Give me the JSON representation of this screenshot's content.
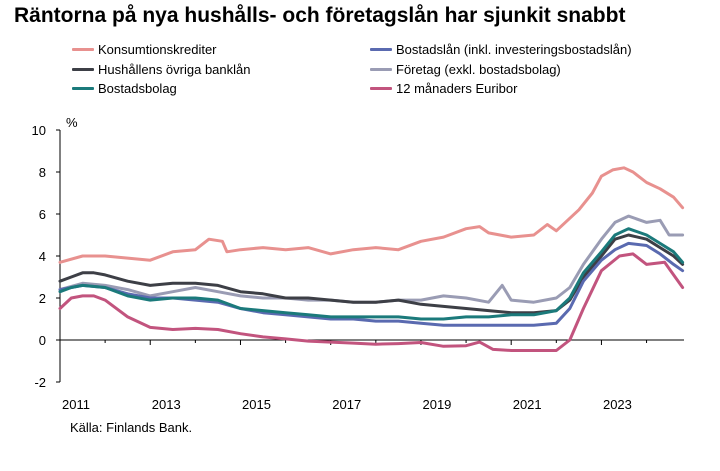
{
  "title": "Räntorna på nya hushålls- och företagslån har sjunkit snabbt",
  "source": "Källa: Finlands Bank.",
  "chart_data": {
    "type": "line",
    "ylabel": "%",
    "ylim": [
      -2,
      10
    ],
    "yticks": [
      -2,
      0,
      2,
      4,
      6,
      8,
      10
    ],
    "xlim": [
      2011.0,
      2024.83
    ],
    "xticks": [
      2011,
      2013,
      2015,
      2017,
      2019,
      2021,
      2023
    ],
    "xticklabels": [
      "2011",
      "2013",
      "2015",
      "2017",
      "2019",
      "2021",
      "2023"
    ],
    "grid": false,
    "legend_position": "top",
    "series": [
      {
        "name": "Konsumtionskrediter",
        "color": "#e8918f",
        "points": [
          [
            2011.0,
            3.7
          ],
          [
            2011.5,
            4.0
          ],
          [
            2012.0,
            4.0
          ],
          [
            2012.5,
            3.9
          ],
          [
            2013.0,
            3.8
          ],
          [
            2013.5,
            4.2
          ],
          [
            2014.0,
            4.3
          ],
          [
            2014.3,
            4.8
          ],
          [
            2014.6,
            4.7
          ],
          [
            2014.7,
            4.2
          ],
          [
            2015.0,
            4.3
          ],
          [
            2015.5,
            4.4
          ],
          [
            2016.0,
            4.3
          ],
          [
            2016.5,
            4.4
          ],
          [
            2017.0,
            4.1
          ],
          [
            2017.5,
            4.3
          ],
          [
            2018.0,
            4.4
          ],
          [
            2018.5,
            4.3
          ],
          [
            2019.0,
            4.7
          ],
          [
            2019.5,
            4.9
          ],
          [
            2020.0,
            5.3
          ],
          [
            2020.3,
            5.4
          ],
          [
            2020.5,
            5.1
          ],
          [
            2021.0,
            4.9
          ],
          [
            2021.5,
            5.0
          ],
          [
            2021.8,
            5.5
          ],
          [
            2022.0,
            5.2
          ],
          [
            2022.5,
            6.2
          ],
          [
            2022.8,
            7.0
          ],
          [
            2023.0,
            7.8
          ],
          [
            2023.25,
            8.1
          ],
          [
            2023.5,
            8.2
          ],
          [
            2023.7,
            8.0
          ],
          [
            2024.0,
            7.5
          ],
          [
            2024.3,
            7.2
          ],
          [
            2024.6,
            6.8
          ],
          [
            2024.8,
            6.3
          ]
        ]
      },
      {
        "name": "Hushållens övriga banklån",
        "color": "#3d3f46",
        "points": [
          [
            2011.0,
            2.8
          ],
          [
            2011.25,
            3.0
          ],
          [
            2011.5,
            3.2
          ],
          [
            2011.75,
            3.2
          ],
          [
            2012.0,
            3.1
          ],
          [
            2012.5,
            2.8
          ],
          [
            2013.0,
            2.6
          ],
          [
            2013.5,
            2.7
          ],
          [
            2014.0,
            2.7
          ],
          [
            2014.5,
            2.6
          ],
          [
            2015.0,
            2.3
          ],
          [
            2015.5,
            2.2
          ],
          [
            2016.0,
            2.0
          ],
          [
            2016.5,
            2.0
          ],
          [
            2017.0,
            1.9
          ],
          [
            2017.5,
            1.8
          ],
          [
            2018.0,
            1.8
          ],
          [
            2018.5,
            1.9
          ],
          [
            2019.0,
            1.7
          ],
          [
            2019.5,
            1.6
          ],
          [
            2020.0,
            1.5
          ],
          [
            2020.5,
            1.4
          ],
          [
            2021.0,
            1.3
          ],
          [
            2021.5,
            1.3
          ],
          [
            2022.0,
            1.4
          ],
          [
            2022.3,
            1.9
          ],
          [
            2022.6,
            3.0
          ],
          [
            2023.0,
            4.0
          ],
          [
            2023.3,
            4.8
          ],
          [
            2023.6,
            5.0
          ],
          [
            2024.0,
            4.8
          ],
          [
            2024.3,
            4.4
          ],
          [
            2024.6,
            4.0
          ],
          [
            2024.8,
            3.6
          ]
        ]
      },
      {
        "name": "Bostadsbolag",
        "color": "#1b7a7b",
        "points": [
          [
            2011.0,
            2.3
          ],
          [
            2011.25,
            2.5
          ],
          [
            2011.5,
            2.6
          ],
          [
            2012.0,
            2.5
          ],
          [
            2012.5,
            2.1
          ],
          [
            2013.0,
            1.9
          ],
          [
            2013.5,
            2.0
          ],
          [
            2014.0,
            2.0
          ],
          [
            2014.5,
            1.9
          ],
          [
            2015.0,
            1.5
          ],
          [
            2015.5,
            1.4
          ],
          [
            2016.0,
            1.3
          ],
          [
            2016.5,
            1.2
          ],
          [
            2017.0,
            1.1
          ],
          [
            2017.5,
            1.1
          ],
          [
            2018.0,
            1.1
          ],
          [
            2018.5,
            1.1
          ],
          [
            2019.0,
            1.0
          ],
          [
            2019.5,
            1.0
          ],
          [
            2020.0,
            1.1
          ],
          [
            2020.5,
            1.1
          ],
          [
            2021.0,
            1.2
          ],
          [
            2021.5,
            1.2
          ],
          [
            2022.0,
            1.4
          ],
          [
            2022.3,
            2.0
          ],
          [
            2022.6,
            3.2
          ],
          [
            2023.0,
            4.2
          ],
          [
            2023.3,
            5.0
          ],
          [
            2023.6,
            5.3
          ],
          [
            2024.0,
            5.0
          ],
          [
            2024.3,
            4.6
          ],
          [
            2024.6,
            4.2
          ],
          [
            2024.8,
            3.7
          ]
        ]
      },
      {
        "name": "Bostadslån (inkl. investeringsbostadslån)",
        "color": "#5a6ab0",
        "points": [
          [
            2011.0,
            2.4
          ],
          [
            2011.5,
            2.6
          ],
          [
            2012.0,
            2.5
          ],
          [
            2012.5,
            2.2
          ],
          [
            2013.0,
            2.0
          ],
          [
            2013.5,
            2.0
          ],
          [
            2014.0,
            1.9
          ],
          [
            2014.5,
            1.8
          ],
          [
            2015.0,
            1.5
          ],
          [
            2015.5,
            1.3
          ],
          [
            2016.0,
            1.2
          ],
          [
            2016.5,
            1.1
          ],
          [
            2017.0,
            1.0
          ],
          [
            2017.5,
            1.0
          ],
          [
            2018.0,
            0.9
          ],
          [
            2018.5,
            0.9
          ],
          [
            2019.0,
            0.8
          ],
          [
            2019.5,
            0.7
          ],
          [
            2020.0,
            0.7
          ],
          [
            2020.5,
            0.7
          ],
          [
            2021.0,
            0.7
          ],
          [
            2021.5,
            0.7
          ],
          [
            2022.0,
            0.8
          ],
          [
            2022.3,
            1.5
          ],
          [
            2022.6,
            2.8
          ],
          [
            2023.0,
            3.8
          ],
          [
            2023.3,
            4.3
          ],
          [
            2023.6,
            4.6
          ],
          [
            2024.0,
            4.5
          ],
          [
            2024.3,
            4.1
          ],
          [
            2024.6,
            3.6
          ],
          [
            2024.8,
            3.3
          ]
        ]
      },
      {
        "name": "Företag (exkl. bostadsbolag)",
        "color": "#9a9cb4",
        "points": [
          [
            2011.0,
            2.4
          ],
          [
            2011.5,
            2.7
          ],
          [
            2012.0,
            2.6
          ],
          [
            2012.5,
            2.4
          ],
          [
            2013.0,
            2.1
          ],
          [
            2013.5,
            2.3
          ],
          [
            2014.0,
            2.5
          ],
          [
            2014.5,
            2.3
          ],
          [
            2015.0,
            2.1
          ],
          [
            2015.5,
            2.0
          ],
          [
            2016.0,
            2.0
          ],
          [
            2016.5,
            1.9
          ],
          [
            2017.0,
            1.9
          ],
          [
            2017.5,
            1.8
          ],
          [
            2018.0,
            1.8
          ],
          [
            2018.5,
            1.9
          ],
          [
            2019.0,
            1.9
          ],
          [
            2019.5,
            2.1
          ],
          [
            2020.0,
            2.0
          ],
          [
            2020.5,
            1.8
          ],
          [
            2020.8,
            2.6
          ],
          [
            2021.0,
            1.9
          ],
          [
            2021.5,
            1.8
          ],
          [
            2022.0,
            2.0
          ],
          [
            2022.3,
            2.5
          ],
          [
            2022.6,
            3.6
          ],
          [
            2023.0,
            4.8
          ],
          [
            2023.3,
            5.6
          ],
          [
            2023.6,
            5.9
          ],
          [
            2024.0,
            5.6
          ],
          [
            2024.3,
            5.7
          ],
          [
            2024.5,
            5.0
          ],
          [
            2024.8,
            5.0
          ]
        ]
      },
      {
        "name": "12 månaders Euribor",
        "color": "#c2547e",
        "points": [
          [
            2011.0,
            1.5
          ],
          [
            2011.25,
            2.0
          ],
          [
            2011.5,
            2.1
          ],
          [
            2011.75,
            2.1
          ],
          [
            2012.0,
            1.9
          ],
          [
            2012.5,
            1.1
          ],
          [
            2013.0,
            0.6
          ],
          [
            2013.5,
            0.5
          ],
          [
            2014.0,
            0.55
          ],
          [
            2014.5,
            0.5
          ],
          [
            2015.0,
            0.3
          ],
          [
            2015.5,
            0.15
          ],
          [
            2016.0,
            0.05
          ],
          [
            2016.5,
            -0.05
          ],
          [
            2017.0,
            -0.1
          ],
          [
            2017.5,
            -0.15
          ],
          [
            2018.0,
            -0.2
          ],
          [
            2018.5,
            -0.17
          ],
          [
            2019.0,
            -0.12
          ],
          [
            2019.5,
            -0.3
          ],
          [
            2020.0,
            -0.27
          ],
          [
            2020.3,
            -0.1
          ],
          [
            2020.6,
            -0.45
          ],
          [
            2021.0,
            -0.5
          ],
          [
            2021.5,
            -0.5
          ],
          [
            2022.0,
            -0.5
          ],
          [
            2022.3,
            0.0
          ],
          [
            2022.6,
            1.5
          ],
          [
            2023.0,
            3.3
          ],
          [
            2023.4,
            4.0
          ],
          [
            2023.7,
            4.1
          ],
          [
            2024.0,
            3.6
          ],
          [
            2024.4,
            3.7
          ],
          [
            2024.8,
            2.5
          ]
        ]
      }
    ]
  }
}
